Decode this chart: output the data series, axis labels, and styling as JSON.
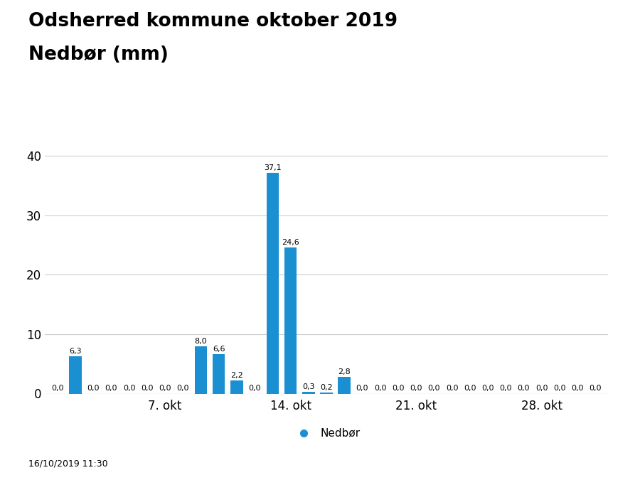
{
  "title_line1": "Odsherred kommune oktober 2019",
  "title_line2": "Nedbør (mm)",
  "bar_color": "#1a8fd1",
  "background_color": "#ffffff",
  "plot_bg_color": "#ffffff",
  "ylim": [
    0,
    42
  ],
  "yticks": [
    0,
    10,
    20,
    30,
    40
  ],
  "xtick_labels": [
    "7. okt",
    "14. okt",
    "21. okt",
    "28. okt"
  ],
  "xtick_positions": [
    7,
    14,
    21,
    28
  ],
  "num_days": 31,
  "values": [
    0.0,
    6.3,
    0.0,
    0.0,
    0.0,
    0.0,
    0.0,
    0.0,
    8.0,
    6.6,
    2.2,
    0.0,
    37.1,
    24.6,
    0.3,
    0.2,
    2.8,
    0.0,
    0.0,
    0.0,
    0.0,
    0.0,
    0.0,
    0.0,
    0.0,
    0.0,
    0.0,
    0.0,
    0.0,
    0.0,
    0.0
  ],
  "legend_label": "Nedbør",
  "legend_marker_color": "#1a8fd1",
  "footer_text": "16/10/2019 11:30",
  "grid_color": "#cccccc",
  "title_fontsize": 19,
  "subtitle_fontsize": 19,
  "tick_fontsize": 12,
  "annotation_fontsize": 8,
  "footer_fontsize": 9,
  "legend_fontsize": 11,
  "dmi_logo_color": "#003D99"
}
